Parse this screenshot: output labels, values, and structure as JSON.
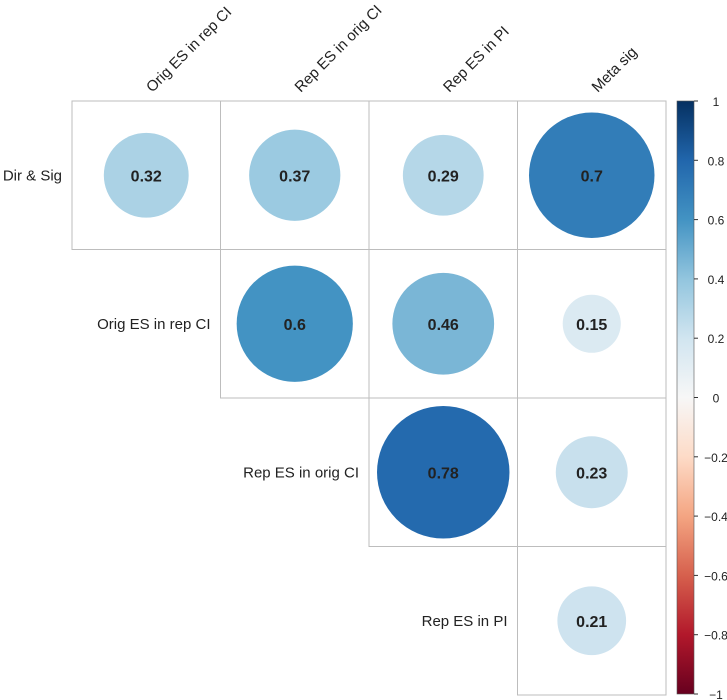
{
  "chart_data": {
    "type": "correlation-matrix",
    "title": "",
    "column_labels": [
      "Orig ES in rep CI",
      "Rep ES in orig CI",
      "Rep ES in PI",
      "Meta sig"
    ],
    "row_labels": [
      "Dir & Sig",
      "Orig ES in rep CI",
      "Rep ES in orig CI",
      "Rep ES in PI"
    ],
    "cells": [
      {
        "row": "Dir & Sig",
        "col": "Orig ES in rep CI",
        "value": 0.32,
        "label": "0.32"
      },
      {
        "row": "Dir & Sig",
        "col": "Rep ES in orig CI",
        "value": 0.37,
        "label": "0.37"
      },
      {
        "row": "Dir & Sig",
        "col": "Rep ES in PI",
        "value": 0.29,
        "label": "0.29"
      },
      {
        "row": "Dir & Sig",
        "col": "Meta sig",
        "value": 0.7,
        "label": "0.7"
      },
      {
        "row": "Orig ES in rep CI",
        "col": "Rep ES in orig CI",
        "value": 0.6,
        "label": "0.6"
      },
      {
        "row": "Orig ES in rep CI",
        "col": "Rep ES in PI",
        "value": 0.46,
        "label": "0.46"
      },
      {
        "row": "Orig ES in rep CI",
        "col": "Meta sig",
        "value": 0.15,
        "label": "0.15"
      },
      {
        "row": "Rep ES in orig CI",
        "col": "Rep ES in PI",
        "value": 0.78,
        "label": "0.78"
      },
      {
        "row": "Rep ES in orig CI",
        "col": "Meta sig",
        "value": 0.23,
        "label": "0.23"
      },
      {
        "row": "Rep ES in PI",
        "col": "Meta sig",
        "value": 0.21,
        "label": "0.21"
      }
    ],
    "colorbar": {
      "range": [
        -1,
        1
      ],
      "ticks": [
        "1",
        "0.8",
        "0.6",
        "0.4",
        "0.2",
        "0",
        "−0.2",
        "−0.4",
        "−0.6",
        "−0.8",
        "−1"
      ],
      "tick_values": [
        1,
        0.8,
        0.6,
        0.4,
        0.2,
        0,
        -0.2,
        -0.4,
        -0.6,
        -0.8,
        -1
      ],
      "colors": [
        "#67001f",
        "#b2182b",
        "#d6604d",
        "#f4a582",
        "#fddbc7",
        "#f7f7f7",
        "#d1e5f0",
        "#92c5de",
        "#4393c3",
        "#2166ac",
        "#053061"
      ]
    }
  }
}
